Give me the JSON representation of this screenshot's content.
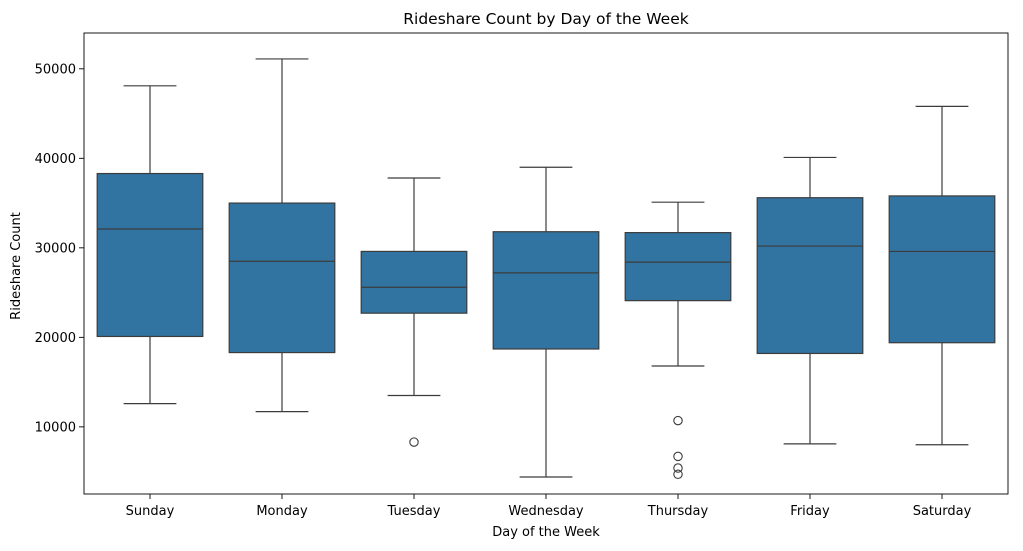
{
  "chart_data": {
    "type": "box",
    "title": "Rideshare Count by Day of the Week",
    "xlabel": "Day of the Week",
    "ylabel": "Rideshare Count",
    "ylim": [
      2500,
      54000
    ],
    "yticks": [
      10000,
      20000,
      30000,
      40000,
      50000
    ],
    "ytick_labels": [
      "10000",
      "20000",
      "30000",
      "40000",
      "50000"
    ],
    "grid": false,
    "box_color": "#3274a1",
    "line_color": "#3c3c3c",
    "categories": [
      "Sunday",
      "Monday",
      "Tuesday",
      "Wednesday",
      "Thursday",
      "Friday",
      "Saturday"
    ],
    "boxes": [
      {
        "category": "Sunday",
        "whisker_low": 12600,
        "q1": 20100,
        "median": 32100,
        "q3": 38300,
        "whisker_high": 48100,
        "outliers": []
      },
      {
        "category": "Monday",
        "whisker_low": 11700,
        "q1": 18300,
        "median": 28500,
        "q3": 35000,
        "whisker_high": 51100,
        "outliers": []
      },
      {
        "category": "Tuesday",
        "whisker_low": 13500,
        "q1": 22700,
        "median": 25600,
        "q3": 29600,
        "whisker_high": 37800,
        "outliers": [
          8300
        ]
      },
      {
        "category": "Wednesday",
        "whisker_low": 4400,
        "q1": 18700,
        "median": 27200,
        "q3": 31800,
        "whisker_high": 39000,
        "outliers": []
      },
      {
        "category": "Thursday",
        "whisker_low": 16800,
        "q1": 24100,
        "median": 28400,
        "q3": 31700,
        "whisker_high": 35100,
        "outliers": [
          10700,
          6700,
          5400,
          4700
        ]
      },
      {
        "category": "Friday",
        "whisker_low": 8100,
        "q1": 18200,
        "median": 30200,
        "q3": 35600,
        "whisker_high": 40100,
        "outliers": []
      },
      {
        "category": "Saturday",
        "whisker_low": 8000,
        "q1": 19400,
        "median": 29600,
        "q3": 35800,
        "whisker_high": 45800,
        "outliers": []
      }
    ]
  }
}
